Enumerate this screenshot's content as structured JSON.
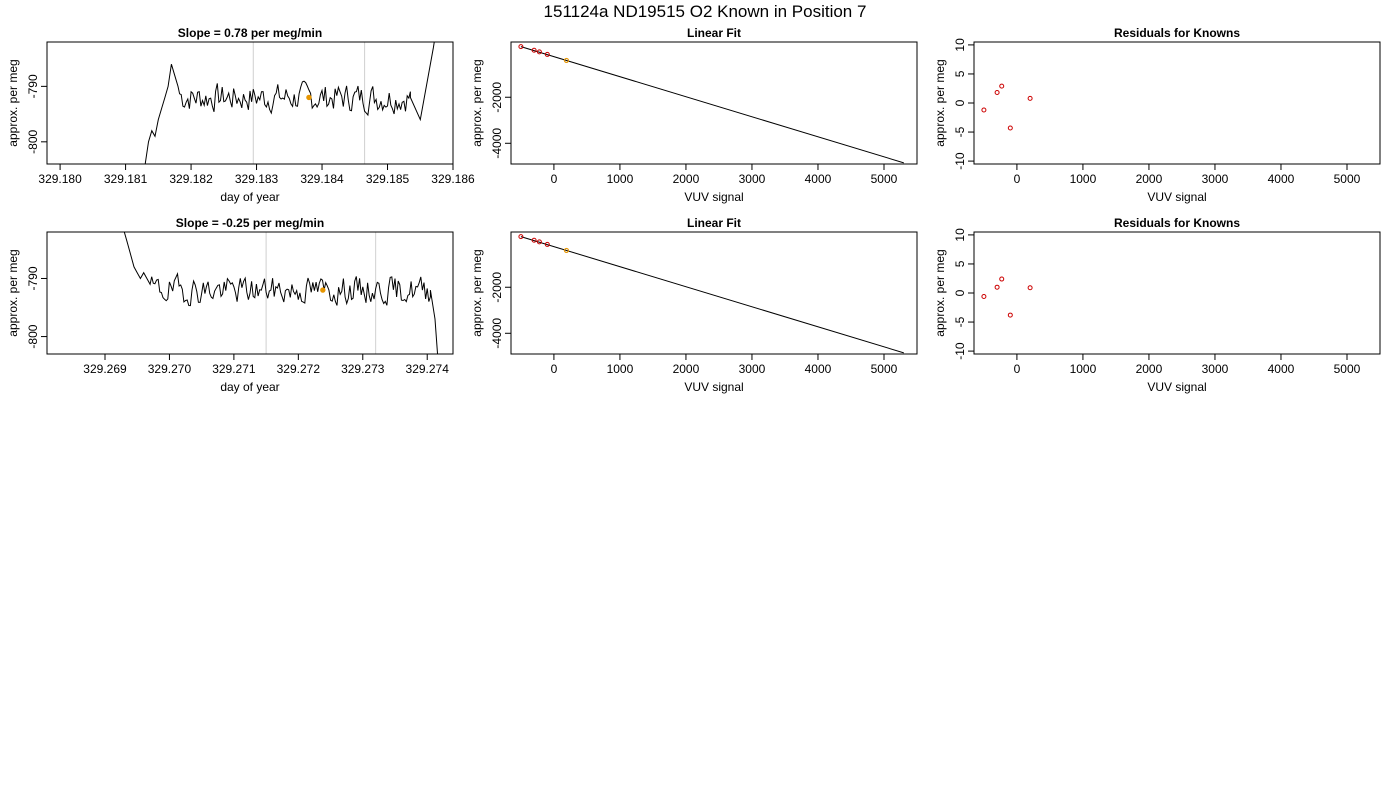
{
  "title": "151124a     ND19515   O2 Known in Position  7",
  "colors": {
    "line": "#000000",
    "point_red": "#cc0000",
    "point_orange": "#e69500",
    "guide": "#d0d0d0"
  },
  "chart_data": [
    {
      "id": "ts1",
      "type": "line",
      "title": "Slope =  0.78  per meg/min",
      "xlabel": "day of year",
      "ylabel": "approx. per meg",
      "xlim": [
        329.1798,
        329.186
      ],
      "ylim": [
        -804,
        -782
      ],
      "xticks": [
        329.18,
        329.181,
        329.182,
        329.183,
        329.184,
        329.185,
        329.186
      ],
      "xtick_labels": [
        "329.180",
        "329.181",
        "329.182",
        "329.183",
        "329.184",
        "329.185",
        "329.186"
      ],
      "yticks": [
        -800,
        -790
      ],
      "ytick_labels": [
        "-800",
        "-790"
      ],
      "vlines": [
        329.18295,
        329.18465
      ],
      "series": {
        "x_start": 329.1813,
        "x_end": 329.1858,
        "x": [
          329.1813,
          329.18135,
          329.1814,
          329.18145,
          329.1815,
          329.18155,
          329.1816,
          329.18165,
          329.1817,
          329.18175,
          329.1818
        ],
        "y": [
          -804,
          -800,
          -798,
          -799,
          -796,
          -794,
          -792,
          -790,
          -786,
          -788,
          -790
        ],
        "mean": -792,
        "amp": 2.2,
        "tail_x": [
          329.18535,
          329.1855,
          329.1857,
          329.18578
        ],
        "tail_y": [
          -792,
          -796,
          -783,
          -777
        ],
        "seed": 7
      },
      "mean_marker": {
        "x": 329.1838,
        "y": -792
      }
    },
    {
      "id": "fit1",
      "type": "scatter",
      "title": "Linear Fit",
      "xlabel": "VUV signal",
      "ylabel": "approx. per meg",
      "xlim": [
        -650,
        5500
      ],
      "ylim": [
        -4900,
        400
      ],
      "xticks": [
        0,
        1000,
        2000,
        3000,
        4000,
        5000
      ],
      "xtick_labels": [
        "0",
        "1000",
        "2000",
        "3000",
        "4000",
        "5000"
      ],
      "yticks": [
        -4000,
        -2000
      ],
      "ytick_labels": [
        "-4000",
        "-2000"
      ],
      "line": {
        "x": [
          -500,
          5300
        ],
        "y": [
          200,
          -4850
        ]
      },
      "points": {
        "x": [
          -500,
          -300,
          -220,
          -100
        ],
        "y": [
          200,
          40,
          -30,
          -140
        ]
      },
      "unknown": {
        "x": 190,
        "y": -400
      }
    },
    {
      "id": "res1",
      "type": "scatter",
      "title": "Residuals for Knowns",
      "xlabel": "VUV signal",
      "ylabel": "approx. per meg",
      "xlim": [
        -650,
        5500
      ],
      "ylim": [
        -10.5,
        10.5
      ],
      "xticks": [
        0,
        1000,
        2000,
        3000,
        4000,
        5000
      ],
      "xtick_labels": [
        "0",
        "1000",
        "2000",
        "3000",
        "4000",
        "5000"
      ],
      "yticks": [
        -10,
        -5,
        0,
        5,
        10
      ],
      "ytick_labels": [
        "-10",
        "-5",
        "0",
        "5",
        "10"
      ],
      "points": {
        "x": [
          -500,
          -300,
          -230,
          -100,
          200
        ],
        "y": [
          -1.2,
          1.8,
          2.9,
          -4.3,
          0.8
        ]
      }
    },
    {
      "id": "ts2",
      "type": "line",
      "title": "Slope =  -0.25  per meg/min",
      "xlabel": "day of year",
      "ylabel": "approx. per meg",
      "xlim": [
        329.2681,
        329.2744
      ],
      "ylim": [
        -803,
        -782
      ],
      "xticks": [
        329.269,
        329.27,
        329.271,
        329.272,
        329.273,
        329.274
      ],
      "xtick_labels": [
        "329.269",
        "329.270",
        "329.271",
        "329.272",
        "329.273",
        "329.274"
      ],
      "yticks": [
        -800,
        -790
      ],
      "ytick_labels": [
        "-800",
        "-790"
      ],
      "vlines": [
        329.2715,
        329.2732
      ],
      "series": {
        "x_start": 329.2693,
        "x_end": 329.2742,
        "x": [
          329.2693,
          329.26935,
          329.2694,
          329.26945,
          329.2695,
          329.26955,
          329.2696,
          329.26965,
          329.2697
        ],
        "y": [
          -782,
          -784,
          -786,
          -788,
          -789,
          -790,
          -789,
          -790,
          -791
        ],
        "mean": -792,
        "amp": 2.0,
        "tail_x": [
          329.27405,
          329.27412,
          329.27418
        ],
        "tail_y": [
          -792,
          -797,
          -806
        ],
        "seed": 19
      },
      "mean_marker": {
        "x": 329.27238,
        "y": -792
      }
    },
    {
      "id": "fit2",
      "type": "scatter",
      "title": "Linear Fit",
      "xlabel": "VUV signal",
      "ylabel": "approx. per meg",
      "xlim": [
        -650,
        5500
      ],
      "ylim": [
        -4900,
        400
      ],
      "xticks": [
        0,
        1000,
        2000,
        3000,
        4000,
        5000
      ],
      "xtick_labels": [
        "0",
        "1000",
        "2000",
        "3000",
        "4000",
        "5000"
      ],
      "yticks": [
        -4000,
        -2000
      ],
      "ytick_labels": [
        "-4000",
        "-2000"
      ],
      "line": {
        "x": [
          -500,
          5300
        ],
        "y": [
          200,
          -4850
        ]
      },
      "points": {
        "x": [
          -500,
          -300,
          -220,
          -100
        ],
        "y": [
          200,
          40,
          -30,
          -140
        ]
      },
      "unknown": {
        "x": 190,
        "y": -400
      }
    },
    {
      "id": "res2",
      "type": "scatter",
      "title": "Residuals for Knowns",
      "xlabel": "VUV signal",
      "ylabel": "approx. per meg",
      "xlim": [
        -650,
        5500
      ],
      "ylim": [
        -10.5,
        10.5
      ],
      "xticks": [
        0,
        1000,
        2000,
        3000,
        4000,
        5000
      ],
      "xtick_labels": [
        "0",
        "1000",
        "2000",
        "3000",
        "4000",
        "5000"
      ],
      "yticks": [
        -10,
        -5,
        0,
        5,
        10
      ],
      "ytick_labels": [
        "-10",
        "-5",
        "0",
        "5",
        "10"
      ],
      "points": {
        "x": [
          -500,
          -300,
          -230,
          -100,
          200
        ],
        "y": [
          -0.6,
          1.0,
          2.4,
          -3.8,
          0.9
        ]
      }
    }
  ]
}
